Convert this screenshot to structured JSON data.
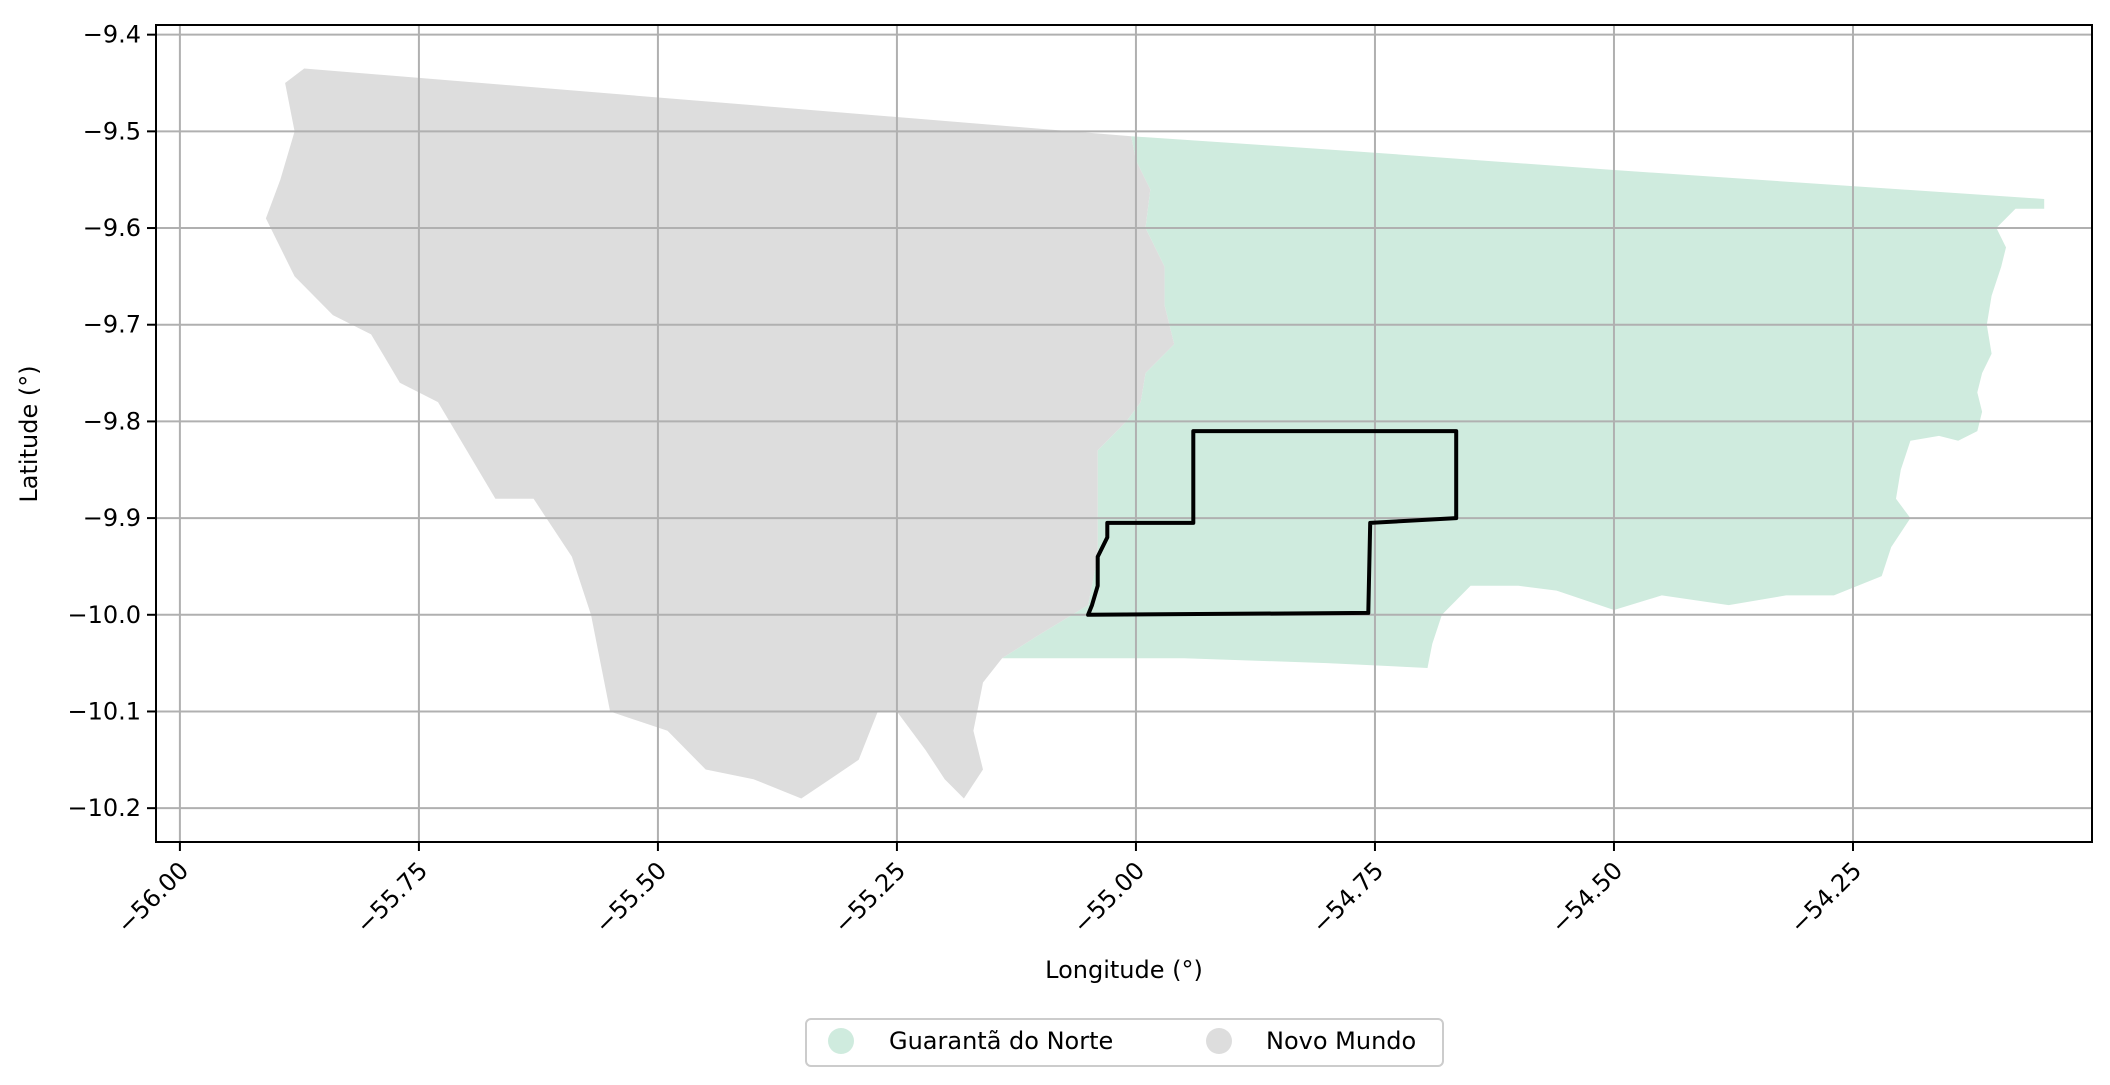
{
  "chart_data": {
    "type": "map",
    "xlabel": "Longitude (°)",
    "ylabel": "Latitude (°)",
    "xlim": [
      -56.025,
      -54.0
    ],
    "ylim": [
      -10.235,
      -9.39
    ],
    "xticks": [
      -56.0,
      -55.75,
      -55.5,
      -55.25,
      -55.0,
      -54.75,
      -54.5,
      -54.25
    ],
    "xtick_labels": [
      "−56.00",
      "−55.75",
      "−55.50",
      "−55.25",
      "−55.00",
      "−54.75",
      "−54.50",
      "−54.25"
    ],
    "yticks": [
      -9.4,
      -9.5,
      -9.6,
      -9.7,
      -9.8,
      -9.9,
      -10.0,
      -10.1,
      -10.2
    ],
    "ytick_labels": [
      "−9.4",
      "−9.5",
      "−9.6",
      "−9.7",
      "−9.8",
      "−9.9",
      "−10.0",
      "−10.1",
      "−10.2"
    ],
    "grid": true,
    "legend_position": "bottom-center",
    "regions": [
      {
        "name": "Guarantã do Norte",
        "color": "#cfebde",
        "polygon": [
          [
            -55.005,
            -9.505
          ],
          [
            -54.78,
            -9.52
          ],
          [
            -54.5,
            -9.54
          ],
          [
            -54.2,
            -9.56
          ],
          [
            -54.05,
            -9.57
          ],
          [
            -54.05,
            -9.58
          ],
          [
            -54.08,
            -9.58
          ],
          [
            -54.1,
            -9.6
          ],
          [
            -54.09,
            -9.62
          ],
          [
            -54.095,
            -9.64
          ],
          [
            -54.105,
            -9.67
          ],
          [
            -54.11,
            -9.7
          ],
          [
            -54.105,
            -9.73
          ],
          [
            -54.115,
            -9.75
          ],
          [
            -54.12,
            -9.77
          ],
          [
            -54.115,
            -9.79
          ],
          [
            -54.12,
            -9.81
          ],
          [
            -54.14,
            -9.82
          ],
          [
            -54.16,
            -9.815
          ],
          [
            -54.19,
            -9.82
          ],
          [
            -54.2,
            -9.85
          ],
          [
            -54.205,
            -9.88
          ],
          [
            -54.19,
            -9.9
          ],
          [
            -54.21,
            -9.93
          ],
          [
            -54.22,
            -9.96
          ],
          [
            -54.27,
            -9.98
          ],
          [
            -54.32,
            -9.98
          ],
          [
            -54.38,
            -9.99
          ],
          [
            -54.45,
            -9.98
          ],
          [
            -54.5,
            -9.995
          ],
          [
            -54.56,
            -9.975
          ],
          [
            -54.6,
            -9.97
          ],
          [
            -54.65,
            -9.97
          ],
          [
            -54.68,
            -10.0
          ],
          [
            -54.69,
            -10.03
          ],
          [
            -54.695,
            -10.055
          ],
          [
            -54.8,
            -10.05
          ],
          [
            -54.95,
            -10.045
          ],
          [
            -55.1,
            -10.045
          ],
          [
            -55.14,
            -10.045
          ],
          [
            -55.1,
            -10.02
          ],
          [
            -55.05,
            -9.99
          ],
          [
            -55.04,
            -9.94
          ],
          [
            -55.04,
            -9.88
          ],
          [
            -55.04,
            -9.83
          ],
          [
            -55.01,
            -9.8
          ],
          [
            -54.995,
            -9.78
          ],
          [
            -54.99,
            -9.75
          ],
          [
            -54.96,
            -9.72
          ],
          [
            -54.97,
            -9.68
          ],
          [
            -54.97,
            -9.64
          ],
          [
            -54.99,
            -9.6
          ],
          [
            -54.985,
            -9.56
          ],
          [
            -55.0,
            -9.53
          ]
        ]
      },
      {
        "name": "Novo Mundo",
        "color": "#dddddd",
        "polygon": [
          [
            -55.87,
            -9.435
          ],
          [
            -55.005,
            -9.505
          ],
          [
            -55.0,
            -9.53
          ],
          [
            -54.985,
            -9.56
          ],
          [
            -54.99,
            -9.6
          ],
          [
            -54.97,
            -9.64
          ],
          [
            -54.97,
            -9.68
          ],
          [
            -54.96,
            -9.72
          ],
          [
            -54.99,
            -9.75
          ],
          [
            -54.995,
            -9.78
          ],
          [
            -55.01,
            -9.8
          ],
          [
            -55.04,
            -9.83
          ],
          [
            -55.04,
            -9.88
          ],
          [
            -55.04,
            -9.94
          ],
          [
            -55.05,
            -9.99
          ],
          [
            -55.1,
            -10.02
          ],
          [
            -55.14,
            -10.045
          ],
          [
            -55.16,
            -10.07
          ],
          [
            -55.17,
            -10.12
          ],
          [
            -55.16,
            -10.16
          ],
          [
            -55.18,
            -10.19
          ],
          [
            -55.2,
            -10.17
          ],
          [
            -55.22,
            -10.14
          ],
          [
            -55.25,
            -10.1
          ],
          [
            -55.27,
            -10.1
          ],
          [
            -55.29,
            -10.15
          ],
          [
            -55.32,
            -10.17
          ],
          [
            -55.35,
            -10.19
          ],
          [
            -55.4,
            -10.17
          ],
          [
            -55.45,
            -10.16
          ],
          [
            -55.49,
            -10.12
          ],
          [
            -55.55,
            -10.1
          ],
          [
            -55.57,
            -10.0
          ],
          [
            -55.59,
            -9.94
          ],
          [
            -55.63,
            -9.88
          ],
          [
            -55.67,
            -9.88
          ],
          [
            -55.7,
            -9.83
          ],
          [
            -55.73,
            -9.78
          ],
          [
            -55.77,
            -9.76
          ],
          [
            -55.8,
            -9.71
          ],
          [
            -55.84,
            -9.69
          ],
          [
            -55.88,
            -9.65
          ],
          [
            -55.91,
            -9.59
          ],
          [
            -55.895,
            -9.55
          ],
          [
            -55.88,
            -9.5
          ],
          [
            -55.89,
            -9.45
          ]
        ]
      }
    ],
    "outline": {
      "color": "#000000",
      "polygon": [
        [
          -54.94,
          -9.81
        ],
        [
          -54.665,
          -9.81
        ],
        [
          -54.665,
          -9.9
        ],
        [
          -54.755,
          -9.905
        ],
        [
          -54.757,
          -9.998
        ],
        [
          -55.05,
          -10.0
        ],
        [
          -55.046,
          -9.99
        ],
        [
          -55.04,
          -9.97
        ],
        [
          -55.04,
          -9.94
        ],
        [
          -55.03,
          -9.92
        ],
        [
          -55.03,
          -9.905
        ],
        [
          -54.94,
          -9.905
        ]
      ]
    }
  },
  "legend": {
    "items": [
      {
        "label": "Guarantã do Norte",
        "color": "#cfebde"
      },
      {
        "label": "Novo Mundo",
        "color": "#dddddd"
      }
    ]
  }
}
